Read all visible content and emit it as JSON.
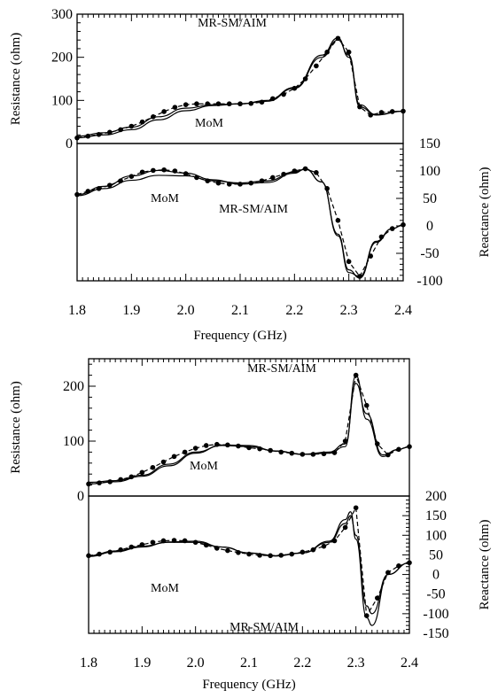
{
  "chart_data": [
    {
      "type": "line",
      "panel": "top-resistance",
      "xlabel": "",
      "ylabel": "Resistance (ohm)",
      "xlim": [
        1.8,
        2.4
      ],
      "ylim": [
        0,
        300
      ],
      "yticks": [
        0,
        100,
        200,
        300
      ],
      "annotations": [
        "MR-SM/AIM",
        "MoM"
      ],
      "series": [
        {
          "style": "solid",
          "x": [
            1.8,
            1.85,
            1.9,
            1.95,
            2.0,
            2.05,
            2.1,
            2.15,
            2.2,
            2.25,
            2.28,
            2.3,
            2.32,
            2.35,
            2.4
          ],
          "y": [
            17,
            25,
            38,
            62,
            82,
            90,
            92,
            98,
            128,
            200,
            240,
            205,
            90,
            67,
            75
          ]
        },
        {
          "style": "solid",
          "x": [
            1.8,
            1.85,
            1.9,
            1.95,
            2.0,
            2.05,
            2.1,
            2.15,
            2.2,
            2.25,
            2.28,
            2.3,
            2.32,
            2.35,
            2.4
          ],
          "y": [
            13,
            20,
            32,
            55,
            76,
            88,
            92,
            100,
            130,
            205,
            245,
            200,
            85,
            66,
            75
          ]
        },
        {
          "style": "markers",
          "x": [
            1.8,
            1.82,
            1.84,
            1.86,
            1.88,
            1.9,
            1.92,
            1.94,
            1.96,
            1.98,
            2.0,
            2.02,
            2.04,
            2.06,
            2.08,
            2.1,
            2.12,
            2.14,
            2.16,
            2.18,
            2.2,
            2.22,
            2.24,
            2.26,
            2.28,
            2.3,
            2.32,
            2.34,
            2.36,
            2.38,
            2.4
          ],
          "y": [
            13,
            17,
            21,
            26,
            32,
            40,
            50,
            62,
            74,
            84,
            90,
            92,
            92,
            92,
            92,
            92,
            93,
            96,
            104,
            114,
            128,
            150,
            180,
            212,
            244,
            212,
            85,
            66,
            72,
            74,
            75
          ]
        }
      ]
    },
    {
      "type": "line",
      "panel": "top-reactance",
      "xlabel": "Frequency (GHz)",
      "ylabel": "Reactance (ohm)",
      "xlim": [
        1.8,
        2.4
      ],
      "ylim": [
        -100,
        150
      ],
      "xticks": [
        1.8,
        1.9,
        2.0,
        2.1,
        2.2,
        2.3,
        2.4
      ],
      "xtick_labels": [
        "1.8",
        "1.9",
        "2.0",
        "2.1",
        "2.2",
        "2.3",
        "2.4"
      ],
      "yticks": [
        -100,
        -50,
        0,
        50,
        100,
        150
      ],
      "annotations": [
        "MoM",
        "MR-SM/AIM"
      ],
      "series": [
        {
          "style": "solid",
          "x": [
            1.8,
            1.85,
            1.9,
            1.95,
            2.0,
            2.05,
            2.1,
            2.15,
            2.2,
            2.22,
            2.25,
            2.28,
            2.3,
            2.32,
            2.35,
            2.38,
            2.4
          ],
          "y": [
            55,
            68,
            83,
            92,
            91,
            82,
            78,
            82,
            98,
            103,
            80,
            -15,
            -80,
            -95,
            -30,
            -5,
            2
          ]
        },
        {
          "style": "solid",
          "x": [
            1.8,
            1.85,
            1.9,
            1.95,
            2.0,
            2.05,
            2.1,
            2.15,
            2.2,
            2.22,
            2.25,
            2.28,
            2.3,
            2.32,
            2.35,
            2.38,
            2.4
          ],
          "y": [
            57,
            72,
            91,
            101,
            96,
            84,
            76,
            79,
            96,
            104,
            80,
            -18,
            -85,
            -92,
            -28,
            -5,
            2
          ]
        },
        {
          "style": "markers",
          "x": [
            1.8,
            1.82,
            1.84,
            1.86,
            1.88,
            1.9,
            1.92,
            1.94,
            1.96,
            1.98,
            2.0,
            2.02,
            2.04,
            2.06,
            2.08,
            2.1,
            2.12,
            2.14,
            2.16,
            2.18,
            2.2,
            2.22,
            2.24,
            2.26,
            2.28,
            2.3,
            2.32,
            2.34,
            2.36,
            2.38,
            2.4
          ],
          "y": [
            57,
            63,
            68,
            74,
            82,
            90,
            98,
            101,
            102,
            100,
            95,
            88,
            82,
            78,
            76,
            76,
            78,
            82,
            88,
            94,
            100,
            104,
            97,
            68,
            10,
            -65,
            -92,
            -55,
            -20,
            -5,
            2
          ]
        }
      ]
    },
    {
      "type": "line",
      "panel": "bottom-resistance",
      "xlabel": "",
      "ylabel": "Resistance (ohm)",
      "xlim": [
        1.8,
        2.4
      ],
      "ylim": [
        0,
        250
      ],
      "yticks": [
        0,
        100,
        200
      ],
      "annotations": [
        "MR-SM/AIM",
        "MoM"
      ],
      "series": [
        {
          "style": "solid",
          "x": [
            1.8,
            1.85,
            1.9,
            1.95,
            2.0,
            2.05,
            2.1,
            2.15,
            2.2,
            2.25,
            2.28,
            2.3,
            2.32,
            2.35,
            2.38,
            2.4
          ],
          "y": [
            25,
            28,
            38,
            58,
            80,
            92,
            90,
            82,
            76,
            80,
            95,
            205,
            150,
            75,
            85,
            90
          ]
        },
        {
          "style": "solid",
          "x": [
            1.8,
            1.85,
            1.9,
            1.95,
            2.0,
            2.05,
            2.1,
            2.15,
            2.2,
            2.25,
            2.28,
            2.3,
            2.32,
            2.35,
            2.38,
            2.4
          ],
          "y": [
            22,
            26,
            36,
            55,
            78,
            93,
            92,
            82,
            76,
            78,
            90,
            220,
            140,
            72,
            85,
            90
          ]
        },
        {
          "style": "markers",
          "x": [
            1.8,
            1.82,
            1.84,
            1.86,
            1.88,
            1.9,
            1.92,
            1.94,
            1.96,
            1.98,
            2.0,
            2.02,
            2.04,
            2.06,
            2.08,
            2.1,
            2.12,
            2.14,
            2.16,
            2.18,
            2.2,
            2.22,
            2.24,
            2.26,
            2.28,
            2.3,
            2.32,
            2.34,
            2.36,
            2.38,
            2.4
          ],
          "y": [
            22,
            24,
            26,
            30,
            35,
            43,
            52,
            62,
            72,
            80,
            87,
            92,
            94,
            93,
            91,
            88,
            86,
            83,
            80,
            78,
            76,
            76,
            77,
            79,
            100,
            220,
            165,
            95,
            75,
            85,
            90
          ]
        }
      ]
    },
    {
      "type": "line",
      "panel": "bottom-reactance",
      "xlabel": "Frequency (GHz)",
      "ylabel": "Reactance (ohm)",
      "xlim": [
        1.8,
        2.4
      ],
      "ylim": [
        -150,
        200
      ],
      "xticks": [
        1.8,
        1.9,
        2.0,
        2.1,
        2.2,
        2.3,
        2.4
      ],
      "xtick_labels": [
        "1.8",
        "1.9",
        "2.0",
        "2.1",
        "2.2",
        "2.3",
        "2.4"
      ],
      "yticks": [
        -150,
        -100,
        -50,
        0,
        50,
        100,
        150,
        200
      ],
      "annotations": [
        "MoM",
        "MR-SM/AIM"
      ],
      "series": [
        {
          "style": "solid",
          "x": [
            1.8,
            1.85,
            1.9,
            1.95,
            2.0,
            2.05,
            2.1,
            2.15,
            2.2,
            2.25,
            2.28,
            2.29,
            2.3,
            2.32,
            2.33,
            2.36,
            2.4
          ],
          "y": [
            48,
            60,
            72,
            82,
            82,
            70,
            55,
            48,
            55,
            82,
            130,
            150,
            100,
            -80,
            -100,
            0,
            30
          ]
        },
        {
          "style": "solid",
          "x": [
            1.8,
            1.85,
            1.9,
            1.95,
            2.0,
            2.05,
            2.1,
            2.15,
            2.2,
            2.25,
            2.28,
            2.29,
            2.3,
            2.32,
            2.33,
            2.36,
            2.4
          ],
          "y": [
            46,
            58,
            70,
            83,
            85,
            70,
            55,
            47,
            55,
            85,
            140,
            160,
            90,
            -110,
            -130,
            0,
            30
          ]
        },
        {
          "style": "markers",
          "x": [
            1.8,
            1.82,
            1.84,
            1.86,
            1.88,
            1.9,
            1.92,
            1.94,
            1.96,
            1.98,
            2.0,
            2.02,
            2.04,
            2.06,
            2.08,
            2.1,
            2.12,
            2.14,
            2.16,
            2.18,
            2.2,
            2.22,
            2.24,
            2.26,
            2.28,
            2.3,
            2.32,
            2.34,
            2.36,
            2.38,
            2.4
          ],
          "y": [
            48,
            52,
            57,
            63,
            70,
            76,
            82,
            86,
            87,
            86,
            82,
            75,
            67,
            61,
            56,
            52,
            49,
            48,
            49,
            52,
            57,
            63,
            72,
            86,
            120,
            170,
            -105,
            -60,
            5,
            22,
            30
          ]
        }
      ]
    }
  ]
}
